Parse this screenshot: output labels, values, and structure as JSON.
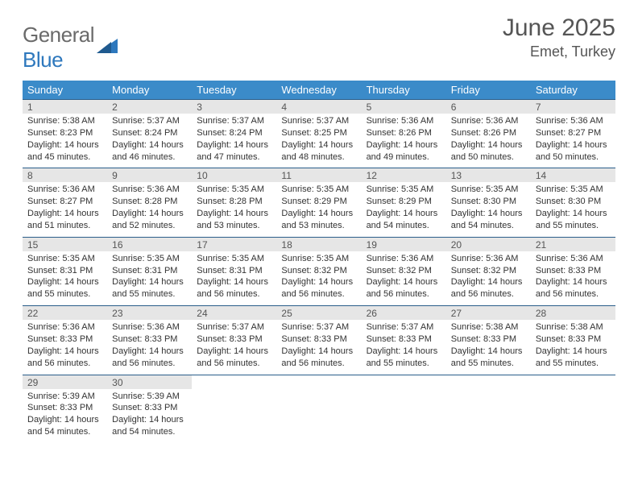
{
  "brand": {
    "part1": "General",
    "part2": "Blue"
  },
  "title": "June 2025",
  "location": "Emet, Turkey",
  "colors": {
    "header_bg": "#3b8bc9",
    "header_text": "#ffffff",
    "daynum_bg": "#e6e6e6",
    "border": "#2a5e8a",
    "body_text": "#333333",
    "title_text": "#555555",
    "logo_gray": "#6a6a6a",
    "logo_blue": "#2e78bd"
  },
  "weekdays": [
    "Sunday",
    "Monday",
    "Tuesday",
    "Wednesday",
    "Thursday",
    "Friday",
    "Saturday"
  ],
  "weeks": [
    [
      {
        "n": "1",
        "sr": "5:38 AM",
        "ss": "8:23 PM",
        "dl": "14 hours and 45 minutes."
      },
      {
        "n": "2",
        "sr": "5:37 AM",
        "ss": "8:24 PM",
        "dl": "14 hours and 46 minutes."
      },
      {
        "n": "3",
        "sr": "5:37 AM",
        "ss": "8:24 PM",
        "dl": "14 hours and 47 minutes."
      },
      {
        "n": "4",
        "sr": "5:37 AM",
        "ss": "8:25 PM",
        "dl": "14 hours and 48 minutes."
      },
      {
        "n": "5",
        "sr": "5:36 AM",
        "ss": "8:26 PM",
        "dl": "14 hours and 49 minutes."
      },
      {
        "n": "6",
        "sr": "5:36 AM",
        "ss": "8:26 PM",
        "dl": "14 hours and 50 minutes."
      },
      {
        "n": "7",
        "sr": "5:36 AM",
        "ss": "8:27 PM",
        "dl": "14 hours and 50 minutes."
      }
    ],
    [
      {
        "n": "8",
        "sr": "5:36 AM",
        "ss": "8:27 PM",
        "dl": "14 hours and 51 minutes."
      },
      {
        "n": "9",
        "sr": "5:36 AM",
        "ss": "8:28 PM",
        "dl": "14 hours and 52 minutes."
      },
      {
        "n": "10",
        "sr": "5:35 AM",
        "ss": "8:28 PM",
        "dl": "14 hours and 53 minutes."
      },
      {
        "n": "11",
        "sr": "5:35 AM",
        "ss": "8:29 PM",
        "dl": "14 hours and 53 minutes."
      },
      {
        "n": "12",
        "sr": "5:35 AM",
        "ss": "8:29 PM",
        "dl": "14 hours and 54 minutes."
      },
      {
        "n": "13",
        "sr": "5:35 AM",
        "ss": "8:30 PM",
        "dl": "14 hours and 54 minutes."
      },
      {
        "n": "14",
        "sr": "5:35 AM",
        "ss": "8:30 PM",
        "dl": "14 hours and 55 minutes."
      }
    ],
    [
      {
        "n": "15",
        "sr": "5:35 AM",
        "ss": "8:31 PM",
        "dl": "14 hours and 55 minutes."
      },
      {
        "n": "16",
        "sr": "5:35 AM",
        "ss": "8:31 PM",
        "dl": "14 hours and 55 minutes."
      },
      {
        "n": "17",
        "sr": "5:35 AM",
        "ss": "8:31 PM",
        "dl": "14 hours and 56 minutes."
      },
      {
        "n": "18",
        "sr": "5:35 AM",
        "ss": "8:32 PM",
        "dl": "14 hours and 56 minutes."
      },
      {
        "n": "19",
        "sr": "5:36 AM",
        "ss": "8:32 PM",
        "dl": "14 hours and 56 minutes."
      },
      {
        "n": "20",
        "sr": "5:36 AM",
        "ss": "8:32 PM",
        "dl": "14 hours and 56 minutes."
      },
      {
        "n": "21",
        "sr": "5:36 AM",
        "ss": "8:33 PM",
        "dl": "14 hours and 56 minutes."
      }
    ],
    [
      {
        "n": "22",
        "sr": "5:36 AM",
        "ss": "8:33 PM",
        "dl": "14 hours and 56 minutes."
      },
      {
        "n": "23",
        "sr": "5:36 AM",
        "ss": "8:33 PM",
        "dl": "14 hours and 56 minutes."
      },
      {
        "n": "24",
        "sr": "5:37 AM",
        "ss": "8:33 PM",
        "dl": "14 hours and 56 minutes."
      },
      {
        "n": "25",
        "sr": "5:37 AM",
        "ss": "8:33 PM",
        "dl": "14 hours and 56 minutes."
      },
      {
        "n": "26",
        "sr": "5:37 AM",
        "ss": "8:33 PM",
        "dl": "14 hours and 55 minutes."
      },
      {
        "n": "27",
        "sr": "5:38 AM",
        "ss": "8:33 PM",
        "dl": "14 hours and 55 minutes."
      },
      {
        "n": "28",
        "sr": "5:38 AM",
        "ss": "8:33 PM",
        "dl": "14 hours and 55 minutes."
      }
    ],
    [
      {
        "n": "29",
        "sr": "5:39 AM",
        "ss": "8:33 PM",
        "dl": "14 hours and 54 minutes."
      },
      {
        "n": "30",
        "sr": "5:39 AM",
        "ss": "8:33 PM",
        "dl": "14 hours and 54 minutes."
      },
      null,
      null,
      null,
      null,
      null
    ]
  ],
  "labels": {
    "sunrise": "Sunrise:",
    "sunset": "Sunset:",
    "daylight": "Daylight:"
  }
}
